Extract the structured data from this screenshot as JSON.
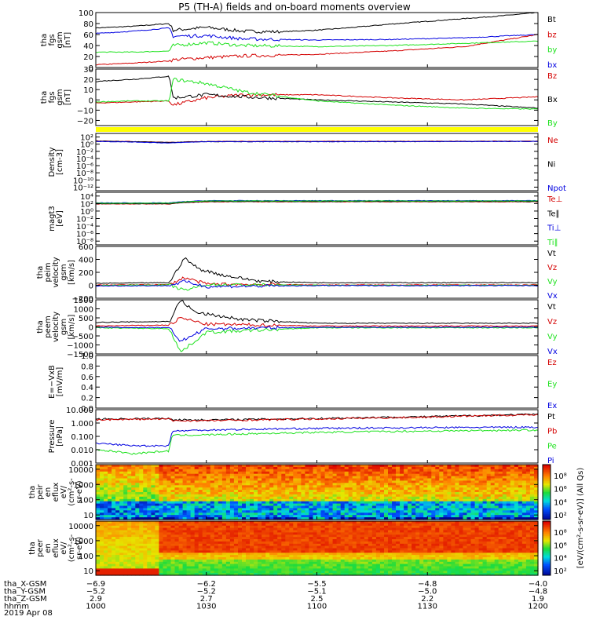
{
  "title": "P5 (TH-A) fields and on-board moments overview",
  "colors": {
    "black": "#000000",
    "red": "#d40000",
    "green": "#1ee21e",
    "blue": "#0000e0",
    "yellow": "#ffff00"
  },
  "chart_data": [
    {
      "type": "line",
      "ylabel": [
        "tha",
        "fgs",
        "gsm",
        "[nT]"
      ],
      "ylim": [
        0,
        100
      ],
      "yticks": [
        "100",
        "80",
        "60",
        "40",
        "20",
        "0"
      ],
      "ytick_values": [
        100,
        80,
        60,
        40,
        20,
        0
      ],
      "legend": [
        "Bt",
        "bz",
        "by",
        "bx"
      ],
      "series": [
        {
          "name": "Bt",
          "color": "#000000",
          "x": [
            1000,
            1010,
            1020,
            1021,
            1030,
            1040,
            1050,
            1100,
            1110,
            1120,
            1130,
            1140,
            1150,
            1200
          ],
          "values": [
            72,
            75,
            80,
            68,
            73,
            66,
            65,
            68,
            73,
            79,
            84,
            89,
            94,
            100
          ]
        },
        {
          "name": "bz",
          "color": "#d40000",
          "x": [
            1000,
            1010,
            1020,
            1021,
            1030,
            1040,
            1100,
            1120,
            1140,
            1200
          ],
          "values": [
            5,
            8,
            12,
            14,
            18,
            21,
            24,
            30,
            38,
            60
          ]
        },
        {
          "name": "by",
          "color": "#1ee21e",
          "x": [
            1000,
            1010,
            1020,
            1021,
            1030,
            1040,
            1100,
            1120,
            1140,
            1200
          ],
          "values": [
            28,
            28,
            30,
            40,
            45,
            40,
            38,
            40,
            44,
            48
          ]
        },
        {
          "name": "bx",
          "color": "#0000e0",
          "x": [
            1000,
            1010,
            1020,
            1021,
            1030,
            1040,
            1100,
            1120,
            1140,
            1200
          ],
          "values": [
            62,
            66,
            72,
            57,
            58,
            52,
            50,
            51,
            54,
            60
          ]
        }
      ]
    },
    {
      "type": "line",
      "ylabel": [
        "tha",
        "fgs",
        "gsm",
        "[nT]"
      ],
      "ylim": [
        -25,
        30
      ],
      "yticks": [
        "30",
        "20",
        "10",
        "0",
        "−10",
        "−20"
      ],
      "ytick_values": [
        30,
        20,
        10,
        0,
        -10,
        -20
      ],
      "legend": [
        "Bz",
        "Bx",
        "By"
      ],
      "series": [
        {
          "name": "Bz",
          "color": "#d40000",
          "x": [
            1000,
            1010,
            1020,
            1021,
            1030,
            1040,
            1100,
            1120,
            1140,
            1200
          ],
          "values": [
            -3,
            -2,
            -1,
            -5,
            2,
            5,
            5,
            2,
            0,
            3
          ]
        },
        {
          "name": "Bx",
          "color": "#000000",
          "x": [
            1000,
            1010,
            1020,
            1021,
            1030,
            1040,
            1100,
            1120,
            1140,
            1200
          ],
          "values": [
            18,
            20,
            23,
            2,
            5,
            3,
            0,
            -2,
            -4,
            -8
          ]
        },
        {
          "name": "By",
          "color": "#1ee21e",
          "x": [
            1000,
            1010,
            1020,
            1021,
            1030,
            1040,
            1100,
            1120,
            1140,
            1200
          ],
          "values": [
            -2,
            -1,
            -1,
            20,
            16,
            8,
            -1,
            -5,
            -8,
            -9
          ]
        }
      ]
    },
    {
      "type": "line",
      "ylabel": [
        "Density",
        "[cm-3]"
      ],
      "scale": "log",
      "ylim": [
        1e-13,
        1000.0
      ],
      "yticks": [
        "10²",
        "10⁰",
        "10⁻²",
        "10⁻⁴",
        "10⁻⁶",
        "10⁻⁸",
        "10⁻¹⁰",
        "10⁻¹²"
      ],
      "ytick_values": [
        100.0,
        1,
        0.01,
        0.0001,
        1e-06,
        1e-08,
        1e-10,
        1e-12
      ],
      "legend": [
        "Ne",
        "Ni",
        "Npot"
      ],
      "series": [
        {
          "name": "Ne",
          "color": "#d40000",
          "x": [
            1000,
            1020,
            1030,
            1100,
            1200
          ],
          "values": [
            8,
            3,
            6,
            6,
            7
          ]
        },
        {
          "name": "Ni",
          "color": "#000000",
          "x": [
            1000,
            1020,
            1030,
            1100,
            1200
          ],
          "values": [
            7,
            3,
            5,
            5,
            6
          ]
        },
        {
          "name": "Npot",
          "color": "#0000e0",
          "x": [
            1000,
            1020,
            1030,
            1100,
            1200
          ],
          "values": [
            6,
            2,
            5,
            5,
            6
          ]
        }
      ]
    },
    {
      "type": "line",
      "ylabel": [
        "magt3",
        "[eV]"
      ],
      "scale": "log",
      "ylim": [
        1e-09,
        100000.0
      ],
      "yticks": [
        "10⁴",
        "10²",
        "10⁰",
        "10⁻²",
        "10⁻⁴",
        "10⁻⁶",
        "10⁻⁸"
      ],
      "ytick_values": [
        10000.0,
        100.0,
        1,
        0.01,
        0.0001,
        1e-06,
        1e-08
      ],
      "legend": [
        "Te⊥",
        "Te∥",
        "Ti⊥",
        "Ti∥"
      ],
      "series": [
        {
          "name": "Te⊥",
          "color": "#d40000",
          "x": [
            1000,
            1020,
            1030,
            1200
          ],
          "values": [
            80,
            80,
            300,
            300
          ]
        },
        {
          "name": "Te∥",
          "color": "#000000",
          "x": [
            1000,
            1020,
            1030,
            1200
          ],
          "values": [
            90,
            90,
            350,
            350
          ]
        },
        {
          "name": "Ti⊥",
          "color": "#0000e0",
          "x": [
            1000,
            1020,
            1030,
            1200
          ],
          "values": [
            150,
            150,
            600,
            600
          ]
        },
        {
          "name": "Ti∥",
          "color": "#1ee21e",
          "x": [
            1000,
            1020,
            1030,
            1200
          ],
          "values": [
            130,
            130,
            500,
            500
          ]
        }
      ]
    },
    {
      "type": "line",
      "ylabel": [
        "tha",
        "peim",
        "velocity",
        "gsm",
        "[km/s]"
      ],
      "ylim": [
        -200,
        600
      ],
      "yticks": [
        "600",
        "400",
        "200",
        "0",
        "−200"
      ],
      "ytick_values": [
        600,
        400,
        200,
        0,
        -200
      ],
      "legend": [
        "Vt",
        "Vz",
        "Vy",
        "Vx"
      ],
      "series": [
        {
          "name": "Vt",
          "color": "#000000",
          "x": [
            1000,
            1020,
            1024,
            1028,
            1035,
            1045,
            1100,
            1200
          ],
          "values": [
            30,
            40,
            420,
            250,
            150,
            60,
            40,
            40
          ]
        },
        {
          "name": "Vz",
          "color": "#d40000",
          "x": [
            1000,
            1020,
            1024,
            1030,
            1100,
            1200
          ],
          "values": [
            5,
            10,
            120,
            20,
            5,
            5
          ]
        },
        {
          "name": "Vy",
          "color": "#1ee21e",
          "x": [
            1000,
            1020,
            1024,
            1030,
            1100,
            1200
          ],
          "values": [
            0,
            5,
            -80,
            10,
            0,
            0
          ]
        },
        {
          "name": "Vx",
          "color": "#0000e0",
          "x": [
            1000,
            1020,
            1024,
            1030,
            1100,
            1200
          ],
          "values": [
            -10,
            -5,
            60,
            -20,
            -5,
            -5
          ]
        }
      ]
    },
    {
      "type": "line",
      "ylabel": [
        "tha",
        "peem",
        "velocity",
        "gsm",
        "[km/s]"
      ],
      "ylim": [
        -1500,
        1500
      ],
      "yticks": [
        "1500",
        "1000",
        "500",
        "0",
        "−500",
        "−1000",
        "−1500"
      ],
      "ytick_values": [
        1500,
        1000,
        500,
        0,
        -500,
        -1000,
        -1500
      ],
      "legend": [
        "Vt",
        "Vz",
        "Vy",
        "Vx"
      ],
      "series": [
        {
          "name": "Vt",
          "color": "#000000",
          "x": [
            1000,
            1020,
            1023,
            1027,
            1040,
            1100,
            1200
          ],
          "values": [
            250,
            300,
            1500,
            800,
            400,
            200,
            200
          ]
        },
        {
          "name": "Vz",
          "color": "#d40000",
          "x": [
            1000,
            1020,
            1023,
            1030,
            1100,
            1200
          ],
          "values": [
            50,
            100,
            500,
            150,
            50,
            50
          ]
        },
        {
          "name": "Vy",
          "color": "#1ee21e",
          "x": [
            1000,
            1020,
            1023,
            1030,
            1100,
            1200
          ],
          "values": [
            -50,
            -100,
            -1400,
            -300,
            -50,
            -50
          ]
        },
        {
          "name": "Vx",
          "color": "#0000e0",
          "x": [
            1000,
            1020,
            1023,
            1030,
            1100,
            1200
          ],
          "values": [
            -20,
            -50,
            -800,
            -100,
            -20,
            -20
          ]
        }
      ]
    },
    {
      "type": "line",
      "ylabel": [
        "E=−VxB",
        "[mV/m]"
      ],
      "ylim": [
        0,
        1
      ],
      "yticks": [
        "1.0",
        "0.8",
        "0.6",
        "0.4",
        "0.2",
        "0.0"
      ],
      "ytick_values": [
        1,
        0.8,
        0.6,
        0.4,
        0.2,
        0
      ],
      "legend": [
        "Ez",
        "Ey",
        "Ex"
      ],
      "series": []
    },
    {
      "type": "line",
      "ylabel": [
        "Pressure",
        "[nPa]"
      ],
      "scale": "log",
      "ylim": [
        0.001,
        10
      ],
      "yticks": [
        "10.000",
        "1.000",
        "0.100",
        "0.010",
        "0.001"
      ],
      "ytick_values": [
        10,
        1,
        0.1,
        0.01,
        0.001
      ],
      "legend": [
        "Pt",
        "Pb",
        "Pe",
        "Pi"
      ],
      "series": [
        {
          "name": "Pt",
          "color": "#000000",
          "x": [
            1000,
            1020,
            1021,
            1030,
            1100,
            1130,
            1200
          ],
          "values": [
            2,
            2.2,
            1.8,
            1.7,
            2.2,
            3.0,
            4.5
          ]
        },
        {
          "name": "Pb",
          "color": "#d40000",
          "x": [
            1000,
            1020,
            1021,
            1030,
            1100,
            1130,
            1200
          ],
          "values": [
            1.8,
            2.0,
            1.5,
            1.5,
            2.0,
            2.8,
            4.3
          ]
        },
        {
          "name": "Pe",
          "color": "#1ee21e",
          "x": [
            1000,
            1010,
            1020,
            1021,
            1030,
            1100,
            1130,
            1200
          ],
          "values": [
            0.01,
            0.005,
            0.008,
            0.12,
            0.13,
            0.2,
            0.25,
            0.3
          ]
        },
        {
          "name": "Pi",
          "color": "#0000e0",
          "x": [
            1000,
            1010,
            1020,
            1021,
            1030,
            1100,
            1130,
            1200
          ],
          "values": [
            0.03,
            0.02,
            0.02,
            0.25,
            0.3,
            0.4,
            0.45,
            0.5
          ]
        }
      ]
    },
    {
      "type": "heatmap",
      "ylabel": [
        "tha",
        "peir",
        "en",
        "eflux",
        "eV/",
        "(cm²-s-",
        "sr-eV)"
      ],
      "scale": "log",
      "ylim": [
        5,
        20000
      ],
      "yticks": [
        "10000",
        "1000",
        "100",
        "10"
      ],
      "ytick_values": [
        10000,
        1000,
        100,
        10
      ]
    },
    {
      "type": "heatmap",
      "ylabel": [
        "tha",
        "peer",
        "en",
        "eflux",
        "eV/",
        "(cm²-s-",
        "sr-eV)"
      ],
      "scale": "log",
      "ylim": [
        5,
        20000
      ],
      "yticks": [
        "10000",
        "1000",
        "100",
        "10"
      ],
      "ytick_values": [
        10000,
        1000,
        100,
        10
      ]
    }
  ],
  "colorbar": {
    "label": "[eV/(cm²-s-sr-eV)] (All Qs)",
    "ticks_top": [
      "10⁸",
      "10⁶",
      "10⁴",
      "10²"
    ],
    "ticks_bottom": [
      "10⁸",
      "10⁶",
      "10⁴",
      "10²"
    ]
  },
  "xaxis": {
    "rows": [
      {
        "name": "tha_X-GSM",
        "values": [
          "−6.9",
          "−6.2",
          "−5.5",
          "−4.8",
          "−4.0"
        ]
      },
      {
        "name": "tha_Y-GSM",
        "values": [
          "−5.2",
          "−5.2",
          "−5.1",
          "−5.0",
          "−4.8"
        ]
      },
      {
        "name": "tha_Z-GSM",
        "values": [
          "2.9",
          "2.7",
          "2.5",
          "2.2",
          "1.9"
        ]
      },
      {
        "name": "hhmm",
        "values": [
          "1000",
          "1030",
          "1100",
          "1130",
          "1200"
        ]
      }
    ],
    "date": "2019 Apr 08",
    "time_ticks": [
      1000,
      1030,
      1100,
      1130,
      1200
    ]
  }
}
